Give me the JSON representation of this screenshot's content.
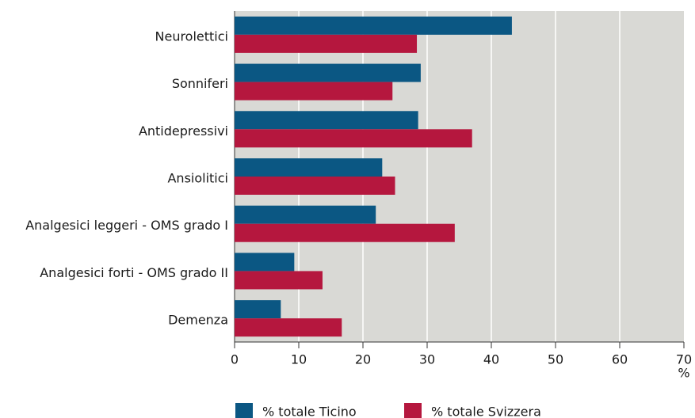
{
  "chart_data": {
    "type": "hbar",
    "categories": [
      "Neurolettici",
      "Sonniferi",
      "Antidepressivi",
      "Ansiolitici",
      "Analgesici leggeri - OMS grado I",
      "Analgesici forti - OMS grado II",
      "Demenza"
    ],
    "series": [
      {
        "name": "% totale Ticino",
        "color": "#0b5783",
        "values": [
          43.2,
          29,
          28.6,
          23,
          22,
          9.3,
          7.2
        ]
      },
      {
        "name": "% totale Svizzera",
        "color": "#b5173e",
        "values": [
          28.4,
          24.6,
          37,
          25,
          34.3,
          13.7,
          16.7
        ]
      }
    ],
    "xlim": [
      0,
      70
    ],
    "xticks": [
      0,
      10,
      20,
      30,
      40,
      50,
      60,
      70
    ],
    "x_label": "%",
    "grid": true,
    "legend": "bottom"
  }
}
